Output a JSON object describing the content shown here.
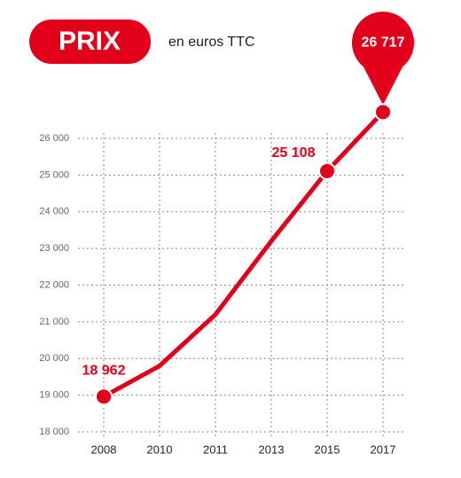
{
  "chart_data": {
    "type": "line",
    "title": "PRIX",
    "subtitle": "en euros TTC",
    "categories": [
      "2008",
      "2010",
      "2011",
      "2013",
      "2015",
      "2017"
    ],
    "series": [
      {
        "color": "#e2001a",
        "values": [
          18962,
          19800,
          21200,
          23200,
          25108,
          26717
        ],
        "value_labels": [
          "18 962",
          null,
          null,
          null,
          "25 108",
          "26 717"
        ]
      }
    ],
    "ylim": [
      18000,
      26000
    ],
    "yticks": [
      {
        "value": 18000,
        "label": "18 000"
      },
      {
        "value": 19000,
        "label": "19 000"
      },
      {
        "value": 20000,
        "label": "20 000"
      },
      {
        "value": 21000,
        "label": "21 000"
      },
      {
        "value": 22000,
        "label": "22 000"
      },
      {
        "value": 23000,
        "label": "23 000"
      },
      {
        "value": 24000,
        "label": "24 000"
      },
      {
        "value": 25000,
        "label": "25 000"
      },
      {
        "value": 26000,
        "label": "26 000"
      }
    ],
    "grid": true
  }
}
